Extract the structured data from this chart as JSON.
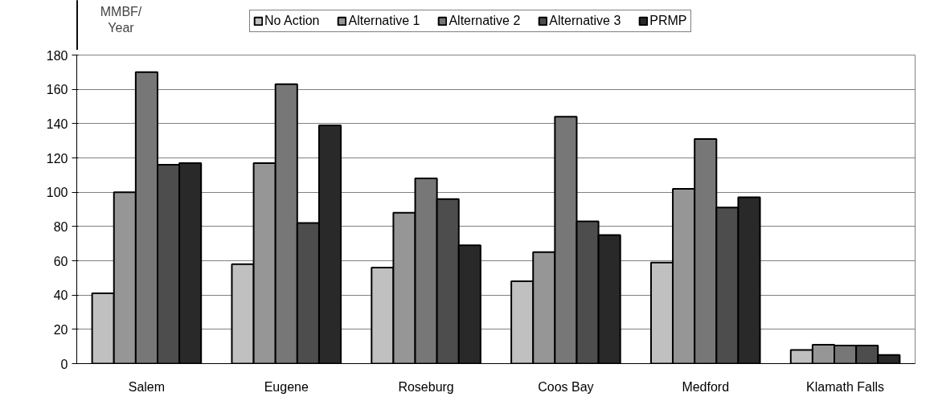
{
  "chart_data": {
    "type": "bar",
    "ylabel": "MMBF/\nYear",
    "categories": [
      "Salem",
      "Eugene",
      "Roseburg",
      "Coos Bay",
      "Medford",
      "Klamath Falls"
    ],
    "series": [
      {
        "name": "No Action",
        "color": "#c0c0c0",
        "values": [
          41,
          58,
          56,
          48,
          59,
          8
        ]
      },
      {
        "name": "Alternative 1",
        "color": "#969696",
        "values": [
          100,
          117,
          88,
          65,
          102,
          11
        ]
      },
      {
        "name": "Alternative 2",
        "color": "#777777",
        "values": [
          170,
          163,
          108,
          144,
          131,
          10.5
        ]
      },
      {
        "name": "Alternative 3",
        "color": "#4d4d4d",
        "values": [
          116,
          82,
          96,
          83,
          91,
          10.5
        ]
      },
      {
        "name": "PRMP",
        "color": "#292929",
        "values": [
          117,
          139,
          69,
          75,
          97,
          5
        ]
      }
    ],
    "ylim": [
      0,
      180
    ],
    "yticks": [
      0,
      20,
      40,
      60,
      80,
      100,
      120,
      140,
      160,
      180
    ],
    "grid": "y",
    "legend": "top"
  }
}
